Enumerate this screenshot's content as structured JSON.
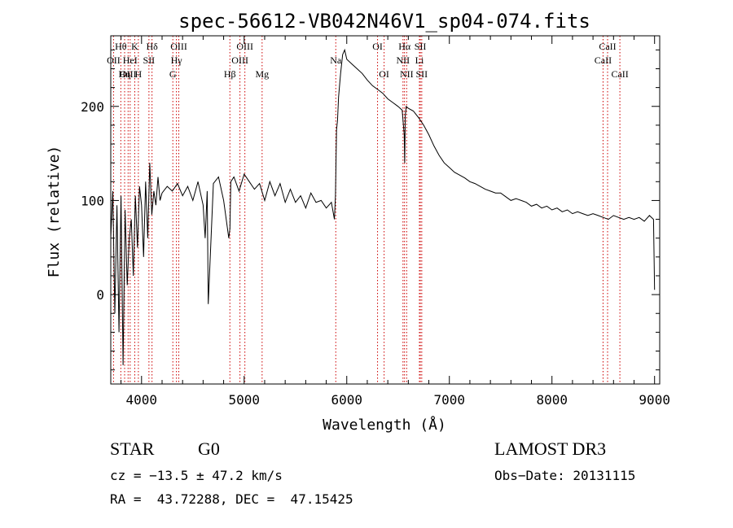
{
  "chart_data": {
    "type": "line",
    "title": "spec-56612-VB042N46V1_sp04-074.fits",
    "xlabel": "Wavelength (Å)",
    "ylabel": "Flux (relative)",
    "xlim": [
      3700,
      9050
    ],
    "ylim": [
      -95,
      275
    ],
    "x_ticks": [
      4000,
      5000,
      6000,
      7000,
      8000,
      9000
    ],
    "y_ticks": [
      0,
      100,
      200
    ],
    "grid": false,
    "series": [
      {
        "name": "flux",
        "x": [
          3700,
          3720,
          3740,
          3760,
          3780,
          3800,
          3820,
          3840,
          3860,
          3880,
          3900,
          3920,
          3940,
          3960,
          3980,
          4000,
          4020,
          4040,
          4060,
          4080,
          4100,
          4120,
          4140,
          4160,
          4180,
          4200,
          4250,
          4300,
          4350,
          4400,
          4450,
          4500,
          4550,
          4600,
          4620,
          4640,
          4650,
          4700,
          4750,
          4800,
          4850,
          4861,
          4870,
          4900,
          4950,
          5000,
          5050,
          5100,
          5150,
          5200,
          5250,
          5300,
          5350,
          5400,
          5450,
          5500,
          5550,
          5600,
          5650,
          5700,
          5750,
          5800,
          5850,
          5880,
          5890,
          5900,
          5910,
          5920,
          5940,
          5960,
          5980,
          6000,
          6050,
          6100,
          6150,
          6200,
          6250,
          6300,
          6350,
          6400,
          6450,
          6500,
          6540,
          6560,
          6565,
          6570,
          6580,
          6600,
          6650,
          6700,
          6750,
          6800,
          6850,
          6900,
          6950,
          7000,
          7050,
          7100,
          7150,
          7200,
          7250,
          7300,
          7350,
          7400,
          7450,
          7500,
          7550,
          7600,
          7650,
          7700,
          7750,
          7800,
          7850,
          7900,
          7950,
          8000,
          8050,
          8100,
          8150,
          8200,
          8250,
          8300,
          8350,
          8400,
          8450,
          8500,
          8550,
          8600,
          8650,
          8700,
          8750,
          8800,
          8850,
          8900,
          8950,
          8990,
          9000
        ],
        "values": [
          60,
          110,
          -20,
          95,
          -40,
          105,
          -75,
          90,
          10,
          60,
          80,
          20,
          105,
          50,
          115,
          95,
          40,
          120,
          60,
          140,
          85,
          110,
          95,
          125,
          100,
          108,
          115,
          110,
          118,
          105,
          115,
          100,
          120,
          95,
          60,
          110,
          -10,
          118,
          125,
          100,
          60,
          70,
          120,
          125,
          110,
          128,
          120,
          112,
          118,
          100,
          120,
          105,
          118,
          98,
          112,
          98,
          105,
          92,
          108,
          98,
          100,
          92,
          98,
          80,
          105,
          175,
          185,
          210,
          235,
          255,
          260,
          250,
          245,
          240,
          235,
          228,
          222,
          218,
          214,
          208,
          204,
          200,
          196,
          170,
          140,
          190,
          200,
          198,
          195,
          188,
          180,
          170,
          158,
          148,
          140,
          135,
          130,
          127,
          124,
          120,
          118,
          115,
          112,
          110,
          108,
          108,
          104,
          100,
          102,
          100,
          98,
          94,
          96,
          92,
          94,
          90,
          92,
          88,
          90,
          86,
          88,
          86,
          84,
          86,
          84,
          82,
          80,
          84,
          82,
          80,
          82,
          80,
          82,
          78,
          84,
          80,
          5
        ]
      }
    ],
    "lines": [
      {
        "label": "Hθ",
        "wavelength": 3798,
        "row": 1
      },
      {
        "label": "OII",
        "wavelength": 3727,
        "row": 2
      },
      {
        "label": "OIII",
        "wavelength": 3869,
        "row": 3
      },
      {
        "label": "Hη",
        "wavelength": 3835,
        "row": 3
      },
      {
        "label": "K",
        "wavelength": 3934,
        "row": 1
      },
      {
        "label": "HeI",
        "wavelength": 3889,
        "row": 2
      },
      {
        "label": "H",
        "wavelength": 3969,
        "row": 3
      },
      {
        "label": "SII",
        "wavelength": 4072,
        "row": 2
      },
      {
        "label": "Hδ",
        "wavelength": 4102,
        "row": 1
      },
      {
        "label": "OIII",
        "wavelength": 4363,
        "row": 1
      },
      {
        "label": "Hγ",
        "wavelength": 4340,
        "row": 2
      },
      {
        "label": "G",
        "wavelength": 4305,
        "row": 3
      },
      {
        "label": "Hβ",
        "wavelength": 4861,
        "row": 3
      },
      {
        "label": "OIII",
        "wavelength": 5007,
        "row": 1
      },
      {
        "label": "OIII",
        "wavelength": 4959,
        "row": 2
      },
      {
        "label": "Mg",
        "wavelength": 5175,
        "row": 3
      },
      {
        "label": "Na",
        "wavelength": 5893,
        "row": 2
      },
      {
        "label": "OI",
        "wavelength": 6300,
        "row": 1
      },
      {
        "label": "OI",
        "wavelength": 6364,
        "row": 3
      },
      {
        "label": "Hα",
        "wavelength": 6563,
        "row": 1
      },
      {
        "label": "NII",
        "wavelength": 6548,
        "row": 2
      },
      {
        "label": "NII",
        "wavelength": 6584,
        "row": 3
      },
      {
        "label": "SII",
        "wavelength": 6717,
        "row": 1
      },
      {
        "label": "Li",
        "wavelength": 6708,
        "row": 2
      },
      {
        "label": "SII",
        "wavelength": 6731,
        "row": 3
      },
      {
        "label": "CaII",
        "wavelength": 8542,
        "row": 1
      },
      {
        "label": "CaII",
        "wavelength": 8498,
        "row": 2
      },
      {
        "label": "CaII",
        "wavelength": 8662,
        "row": 3
      }
    ]
  },
  "info": {
    "class": "STAR",
    "subclass": "G0",
    "survey": "LAMOST DR3",
    "cz": "cz = −13.5 ± 47.2 km/s",
    "obs_date": "Obs−Date: 20131115",
    "coords": "RA =  43.72288, DEC =  47.15425"
  },
  "colors": {
    "line": "#000000",
    "marker": "#cc0000"
  }
}
